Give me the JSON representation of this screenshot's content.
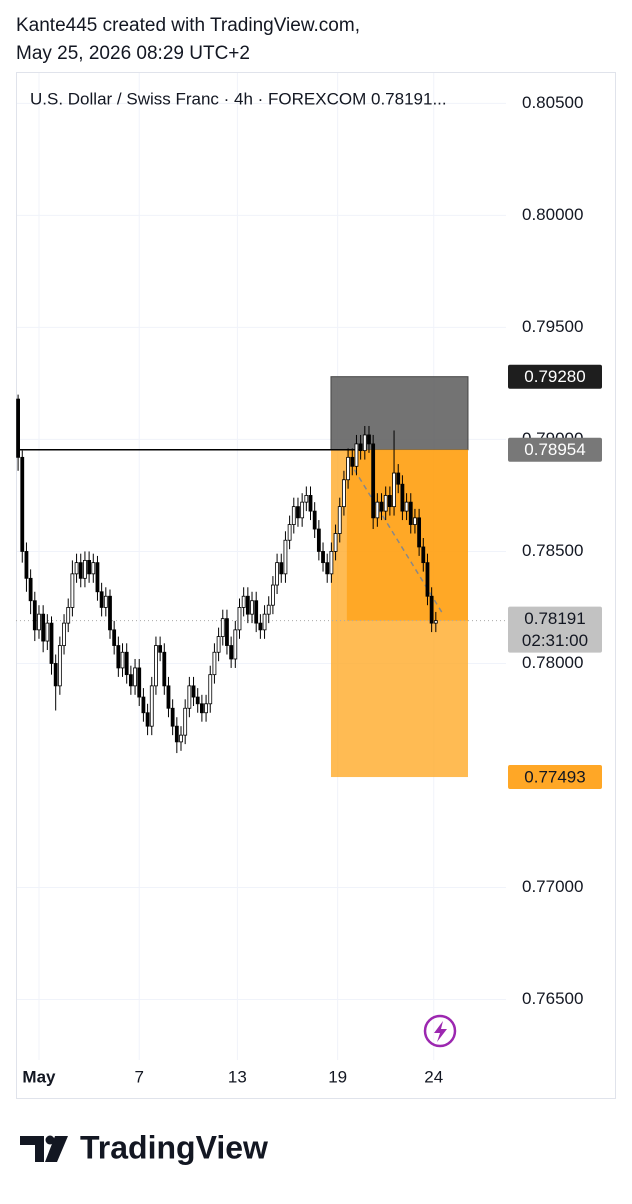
{
  "header": {
    "line1": "Kante445 created with TradingView.com,",
    "line2": "May 25, 2026 08:29 UTC+2"
  },
  "chart_data": {
    "type": "candlestick",
    "title": "U.S. Dollar / Swiss Franc · 4h · FOREXCOM  0.78191...",
    "ylim": [
      0.7623,
      0.8064
    ],
    "yticks": [
      {
        "value": 0.805,
        "label": "0.80500"
      },
      {
        "value": 0.8,
        "label": "0.80000"
      },
      {
        "value": 0.795,
        "label": "0.79500"
      },
      {
        "value": 0.79,
        "label": "0.79000"
      },
      {
        "value": 0.785,
        "label": "0.78500"
      },
      {
        "value": 0.78,
        "label": "0.78000"
      },
      {
        "value": 0.77,
        "label": "0.77000"
      },
      {
        "value": 0.765,
        "label": "0.76500"
      }
    ],
    "xlim": [
      -0.5,
      116.8
    ],
    "xticks": [
      {
        "value": 5,
        "label": "May"
      },
      {
        "value": 29,
        "label": "7"
      },
      {
        "value": 52.5,
        "label": "13"
      },
      {
        "value": 76.5,
        "label": "19"
      },
      {
        "value": 99.5,
        "label": "24"
      }
    ],
    "grid": true,
    "up_color": "#ffffff",
    "down_color": "#000000",
    "border_color": "#000000",
    "open": [
      0.7918,
      0.7892,
      0.785,
      0.7838,
      0.7828,
      0.7815,
      0.7822,
      0.781,
      0.7818,
      0.78,
      0.779,
      0.7808,
      0.7818,
      0.7825,
      0.784,
      0.7845,
      0.7838,
      0.7846,
      0.784,
      0.7845,
      0.7832,
      0.7825,
      0.783,
      0.7815,
      0.7808,
      0.7798,
      0.7805,
      0.7795,
      0.779,
      0.7798,
      0.7785,
      0.7778,
      0.7772,
      0.779,
      0.7808,
      0.7805,
      0.779,
      0.778,
      0.7772,
      0.7765,
      0.7768,
      0.778,
      0.779,
      0.7785,
      0.7782,
      0.7778,
      0.7782,
      0.7795,
      0.7805,
      0.7812,
      0.782,
      0.7808,
      0.7802,
      0.7815,
      0.7825,
      0.783,
      0.7822,
      0.7828,
      0.7818,
      0.7815,
      0.7822,
      0.7826,
      0.7835,
      0.7845,
      0.784,
      0.7855,
      0.7862,
      0.787,
      0.7865,
      0.7872,
      0.7875,
      0.7868,
      0.786,
      0.785,
      0.7845,
      0.784,
      0.785,
      0.7858,
      0.787,
      0.7882,
      0.7892,
      0.7888,
      0.7898,
      0.7895,
      0.7902,
      0.7898,
      0.7865,
      0.7872,
      0.7868,
      0.7875,
      0.787,
      0.7885,
      0.788,
      0.7868,
      0.7872,
      0.7862,
      0.7865,
      0.7852,
      0.7845,
      0.783,
      0.7818
    ],
    "high": [
      0.792,
      0.7895,
      0.7854,
      0.7842,
      0.7832,
      0.7826,
      0.7826,
      0.7822,
      0.7821,
      0.7804,
      0.7812,
      0.7822,
      0.7829,
      0.7846,
      0.7849,
      0.7849,
      0.785,
      0.785,
      0.7849,
      0.7848,
      0.7836,
      0.7834,
      0.7833,
      0.7819,
      0.7812,
      0.7809,
      0.7809,
      0.7799,
      0.7802,
      0.7802,
      0.7789,
      0.7782,
      0.7794,
      0.7812,
      0.7812,
      0.7809,
      0.7794,
      0.7784,
      0.7776,
      0.7772,
      0.7784,
      0.7794,
      0.7794,
      0.7789,
      0.7786,
      0.7786,
      0.7799,
      0.7809,
      0.7816,
      0.7824,
      0.7824,
      0.7812,
      0.7819,
      0.7829,
      0.7834,
      0.7834,
      0.7832,
      0.7832,
      0.7822,
      0.7826,
      0.783,
      0.7839,
      0.7849,
      0.7849,
      0.7859,
      0.7866,
      0.7874,
      0.7874,
      0.7876,
      0.7879,
      0.7879,
      0.7872,
      0.7864,
      0.7854,
      0.7849,
      0.7854,
      0.7862,
      0.7874,
      0.7886,
      0.7896,
      0.7896,
      0.7902,
      0.7902,
      0.7906,
      0.7906,
      0.7902,
      0.7876,
      0.7876,
      0.7879,
      0.7879,
      0.7904,
      0.7889,
      0.7884,
      0.7876,
      0.7876,
      0.7869,
      0.7869,
      0.7856,
      0.7849,
      0.7834,
      0.7823
    ],
    "low": [
      0.7886,
      0.7845,
      0.7832,
      0.7822,
      0.781,
      0.7811,
      0.7805,
      0.7806,
      0.7795,
      0.7779,
      0.7786,
      0.7804,
      0.7814,
      0.7821,
      0.7836,
      0.7834,
      0.7834,
      0.7836,
      0.7836,
      0.7828,
      0.7821,
      0.7821,
      0.7811,
      0.7804,
      0.7794,
      0.7794,
      0.7791,
      0.7786,
      0.7786,
      0.7781,
      0.7774,
      0.7768,
      0.7768,
      0.7786,
      0.7801,
      0.7786,
      0.7776,
      0.7768,
      0.776,
      0.7761,
      0.7764,
      0.7776,
      0.7781,
      0.7778,
      0.7774,
      0.7774,
      0.7778,
      0.7791,
      0.7801,
      0.7808,
      0.7804,
      0.7798,
      0.7798,
      0.7811,
      0.7821,
      0.7818,
      0.7818,
      0.7814,
      0.7811,
      0.7811,
      0.7818,
      0.7822,
      0.7831,
      0.7836,
      0.7836,
      0.7851,
      0.7858,
      0.7861,
      0.7861,
      0.7868,
      0.7864,
      0.7856,
      0.7846,
      0.7841,
      0.7836,
      0.7836,
      0.7846,
      0.7854,
      0.7866,
      0.7878,
      0.7884,
      0.7884,
      0.7891,
      0.7891,
      0.7894,
      0.786,
      0.7861,
      0.7864,
      0.7864,
      0.7866,
      0.7866,
      0.7876,
      0.7864,
      0.7864,
      0.7858,
      0.7858,
      0.7848,
      0.7841,
      0.7826,
      0.7814,
      0.7814
    ],
    "close": [
      0.7892,
      0.785,
      0.7838,
      0.7828,
      0.7815,
      0.7822,
      0.781,
      0.7818,
      0.78,
      0.779,
      0.7808,
      0.7818,
      0.7825,
      0.784,
      0.7845,
      0.7838,
      0.7846,
      0.784,
      0.7845,
      0.7832,
      0.7825,
      0.783,
      0.7815,
      0.7808,
      0.7798,
      0.7805,
      0.7795,
      0.779,
      0.7798,
      0.7785,
      0.7778,
      0.7772,
      0.779,
      0.7808,
      0.7805,
      0.779,
      0.778,
      0.7772,
      0.7765,
      0.7768,
      0.778,
      0.779,
      0.7785,
      0.7782,
      0.7778,
      0.7782,
      0.7795,
      0.7805,
      0.7812,
      0.782,
      0.7808,
      0.7802,
      0.7815,
      0.7825,
      0.783,
      0.7822,
      0.7828,
      0.7818,
      0.7815,
      0.7822,
      0.7826,
      0.7835,
      0.7845,
      0.784,
      0.7855,
      0.7862,
      0.787,
      0.7865,
      0.7872,
      0.7875,
      0.7868,
      0.786,
      0.785,
      0.7845,
      0.784,
      0.785,
      0.7858,
      0.787,
      0.7882,
      0.7892,
      0.7888,
      0.7898,
      0.7895,
      0.7902,
      0.7898,
      0.7865,
      0.7872,
      0.7868,
      0.7875,
      0.787,
      0.7885,
      0.788,
      0.7868,
      0.7872,
      0.7862,
      0.7865,
      0.7852,
      0.7845,
      0.783,
      0.7818,
      0.78191
    ],
    "position": {
      "stop": {
        "value": 0.7928,
        "label": "0.79280"
      },
      "entry": {
        "value": 0.78954,
        "label": "0.78954"
      },
      "target": {
        "value": 0.77493,
        "label": "0.77493"
      }
    },
    "last_price": {
      "value": 0.78191,
      "label": "0.78191"
    },
    "countdown": "02:31:00"
  },
  "footer": {
    "brand": "TradingView"
  }
}
